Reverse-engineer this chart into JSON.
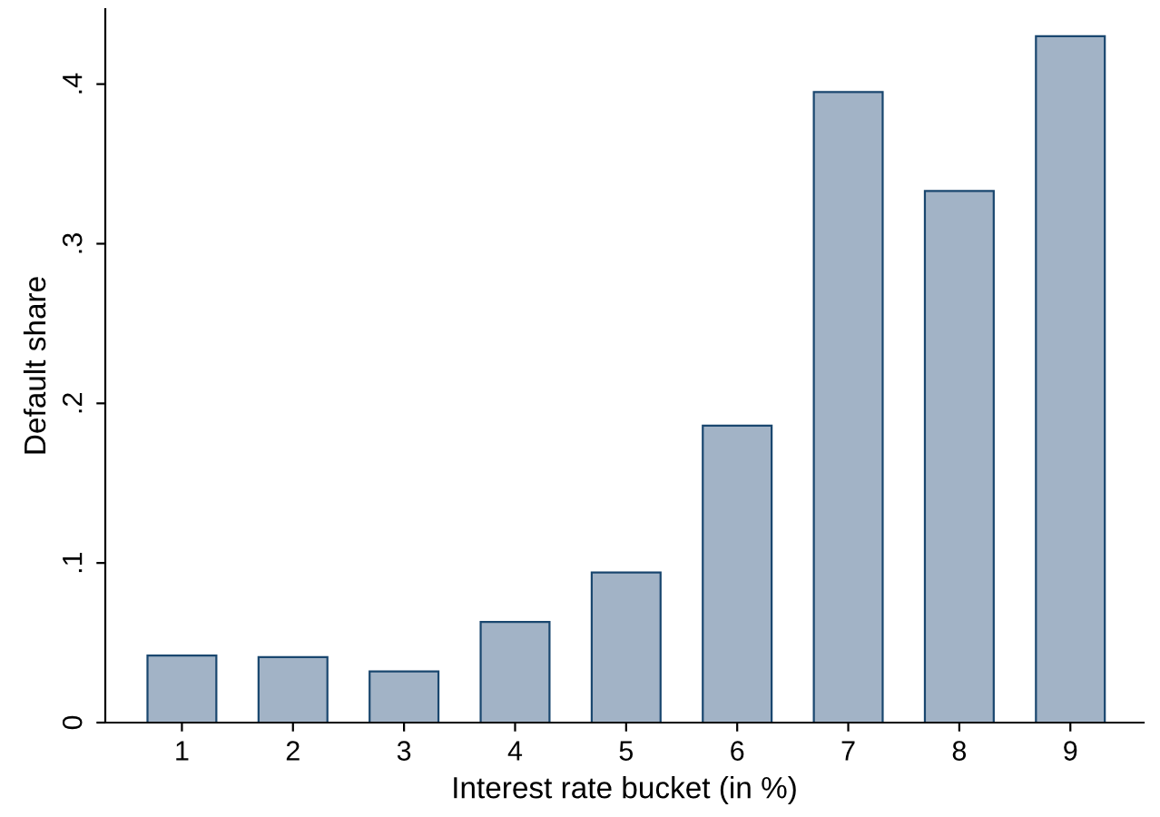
{
  "chart_data": {
    "type": "bar",
    "xlabel": "Interest rate bucket (in %)",
    "ylabel": "Default share",
    "categories": [
      "1",
      "2",
      "3",
      "4",
      "5",
      "6",
      "7",
      "8",
      "9"
    ],
    "values": [
      0.042,
      0.041,
      0.032,
      0.063,
      0.094,
      0.186,
      0.395,
      0.333,
      0.43
    ],
    "color": "#a2b3c6",
    "ylim": [
      0,
      0.447
    ],
    "yticks": [
      {
        "value": 0,
        "label": "0"
      },
      {
        "value": 0.1,
        "label": ".1"
      },
      {
        "value": 0.2,
        "label": ".2"
      },
      {
        "value": 0.3,
        "label": ".3"
      },
      {
        "value": 0.4,
        "label": ".4"
      }
    ],
    "grid": false,
    "legend": false
  }
}
